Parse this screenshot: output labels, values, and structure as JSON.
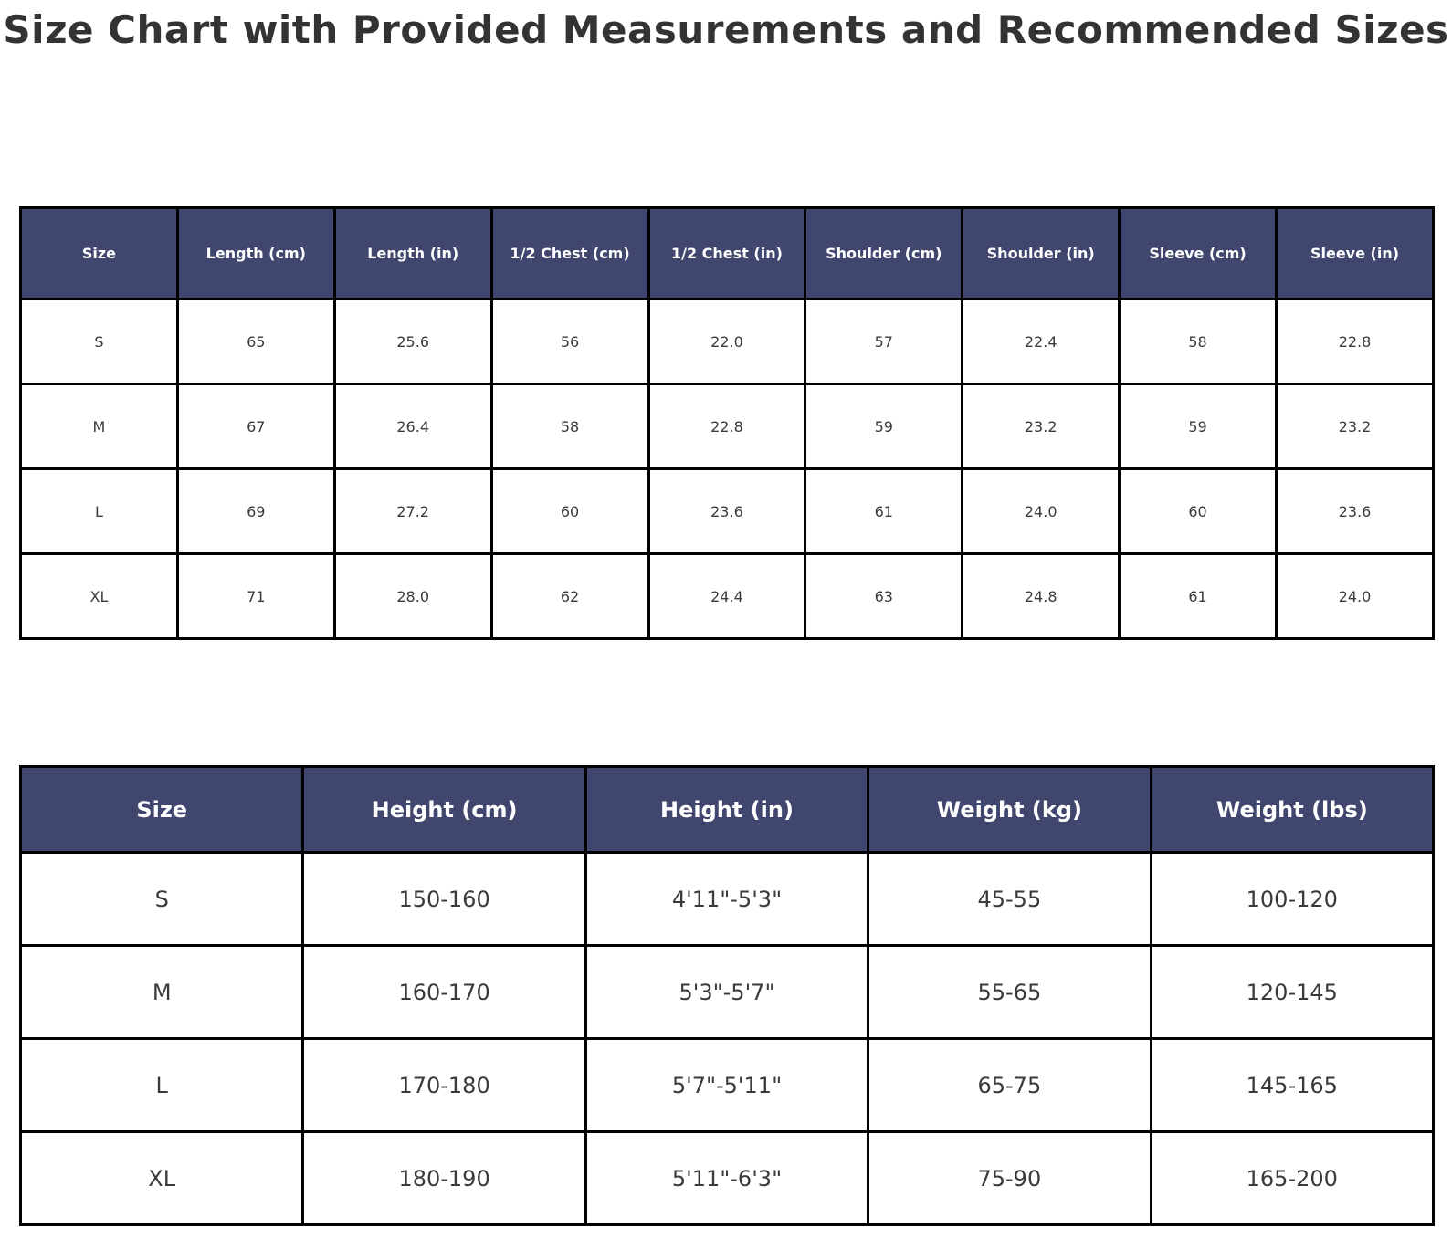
{
  "page_title": "Size Chart with Provided Measurements and Recommended Sizes",
  "colors": {
    "header_bg": "#40466e",
    "header_text": "#ffffff",
    "cell_text": "#3a3a3a",
    "border": "#000000",
    "row_bg": "#ffffff",
    "title_text": "#333333"
  },
  "chart_data": [
    {
      "type": "table",
      "name": "provided-measurements",
      "columns": [
        "Size",
        "Length (cm)",
        "Length (in)",
        "1/2 Chest (cm)",
        "1/2 Chest (in)",
        "Shoulder (cm)",
        "Shoulder (in)",
        "Sleeve (cm)",
        "Sleeve (in)"
      ],
      "rows": [
        [
          "S",
          "65",
          "25.6",
          "56",
          "22.0",
          "57",
          "22.4",
          "58",
          "22.8"
        ],
        [
          "M",
          "67",
          "26.4",
          "58",
          "22.8",
          "59",
          "23.2",
          "59",
          "23.2"
        ],
        [
          "L",
          "69",
          "27.2",
          "60",
          "23.6",
          "61",
          "24.0",
          "60",
          "23.6"
        ],
        [
          "XL",
          "71",
          "28.0",
          "62",
          "24.4",
          "63",
          "24.8",
          "61",
          "24.0"
        ]
      ]
    },
    {
      "type": "table",
      "name": "recommended-sizes",
      "columns": [
        "Size",
        "Height (cm)",
        "Height (in)",
        "Weight (kg)",
        "Weight (lbs)"
      ],
      "rows": [
        [
          "S",
          "150-160",
          "4'11\"-5'3\"",
          "45-55",
          "100-120"
        ],
        [
          "M",
          "160-170",
          "5'3\"-5'7\"",
          "55-65",
          "120-145"
        ],
        [
          "L",
          "170-180",
          "5'7\"-5'11\"",
          "65-75",
          "145-165"
        ],
        [
          "XL",
          "180-190",
          "5'11\"-6'3\"",
          "75-90",
          "165-200"
        ]
      ]
    }
  ]
}
